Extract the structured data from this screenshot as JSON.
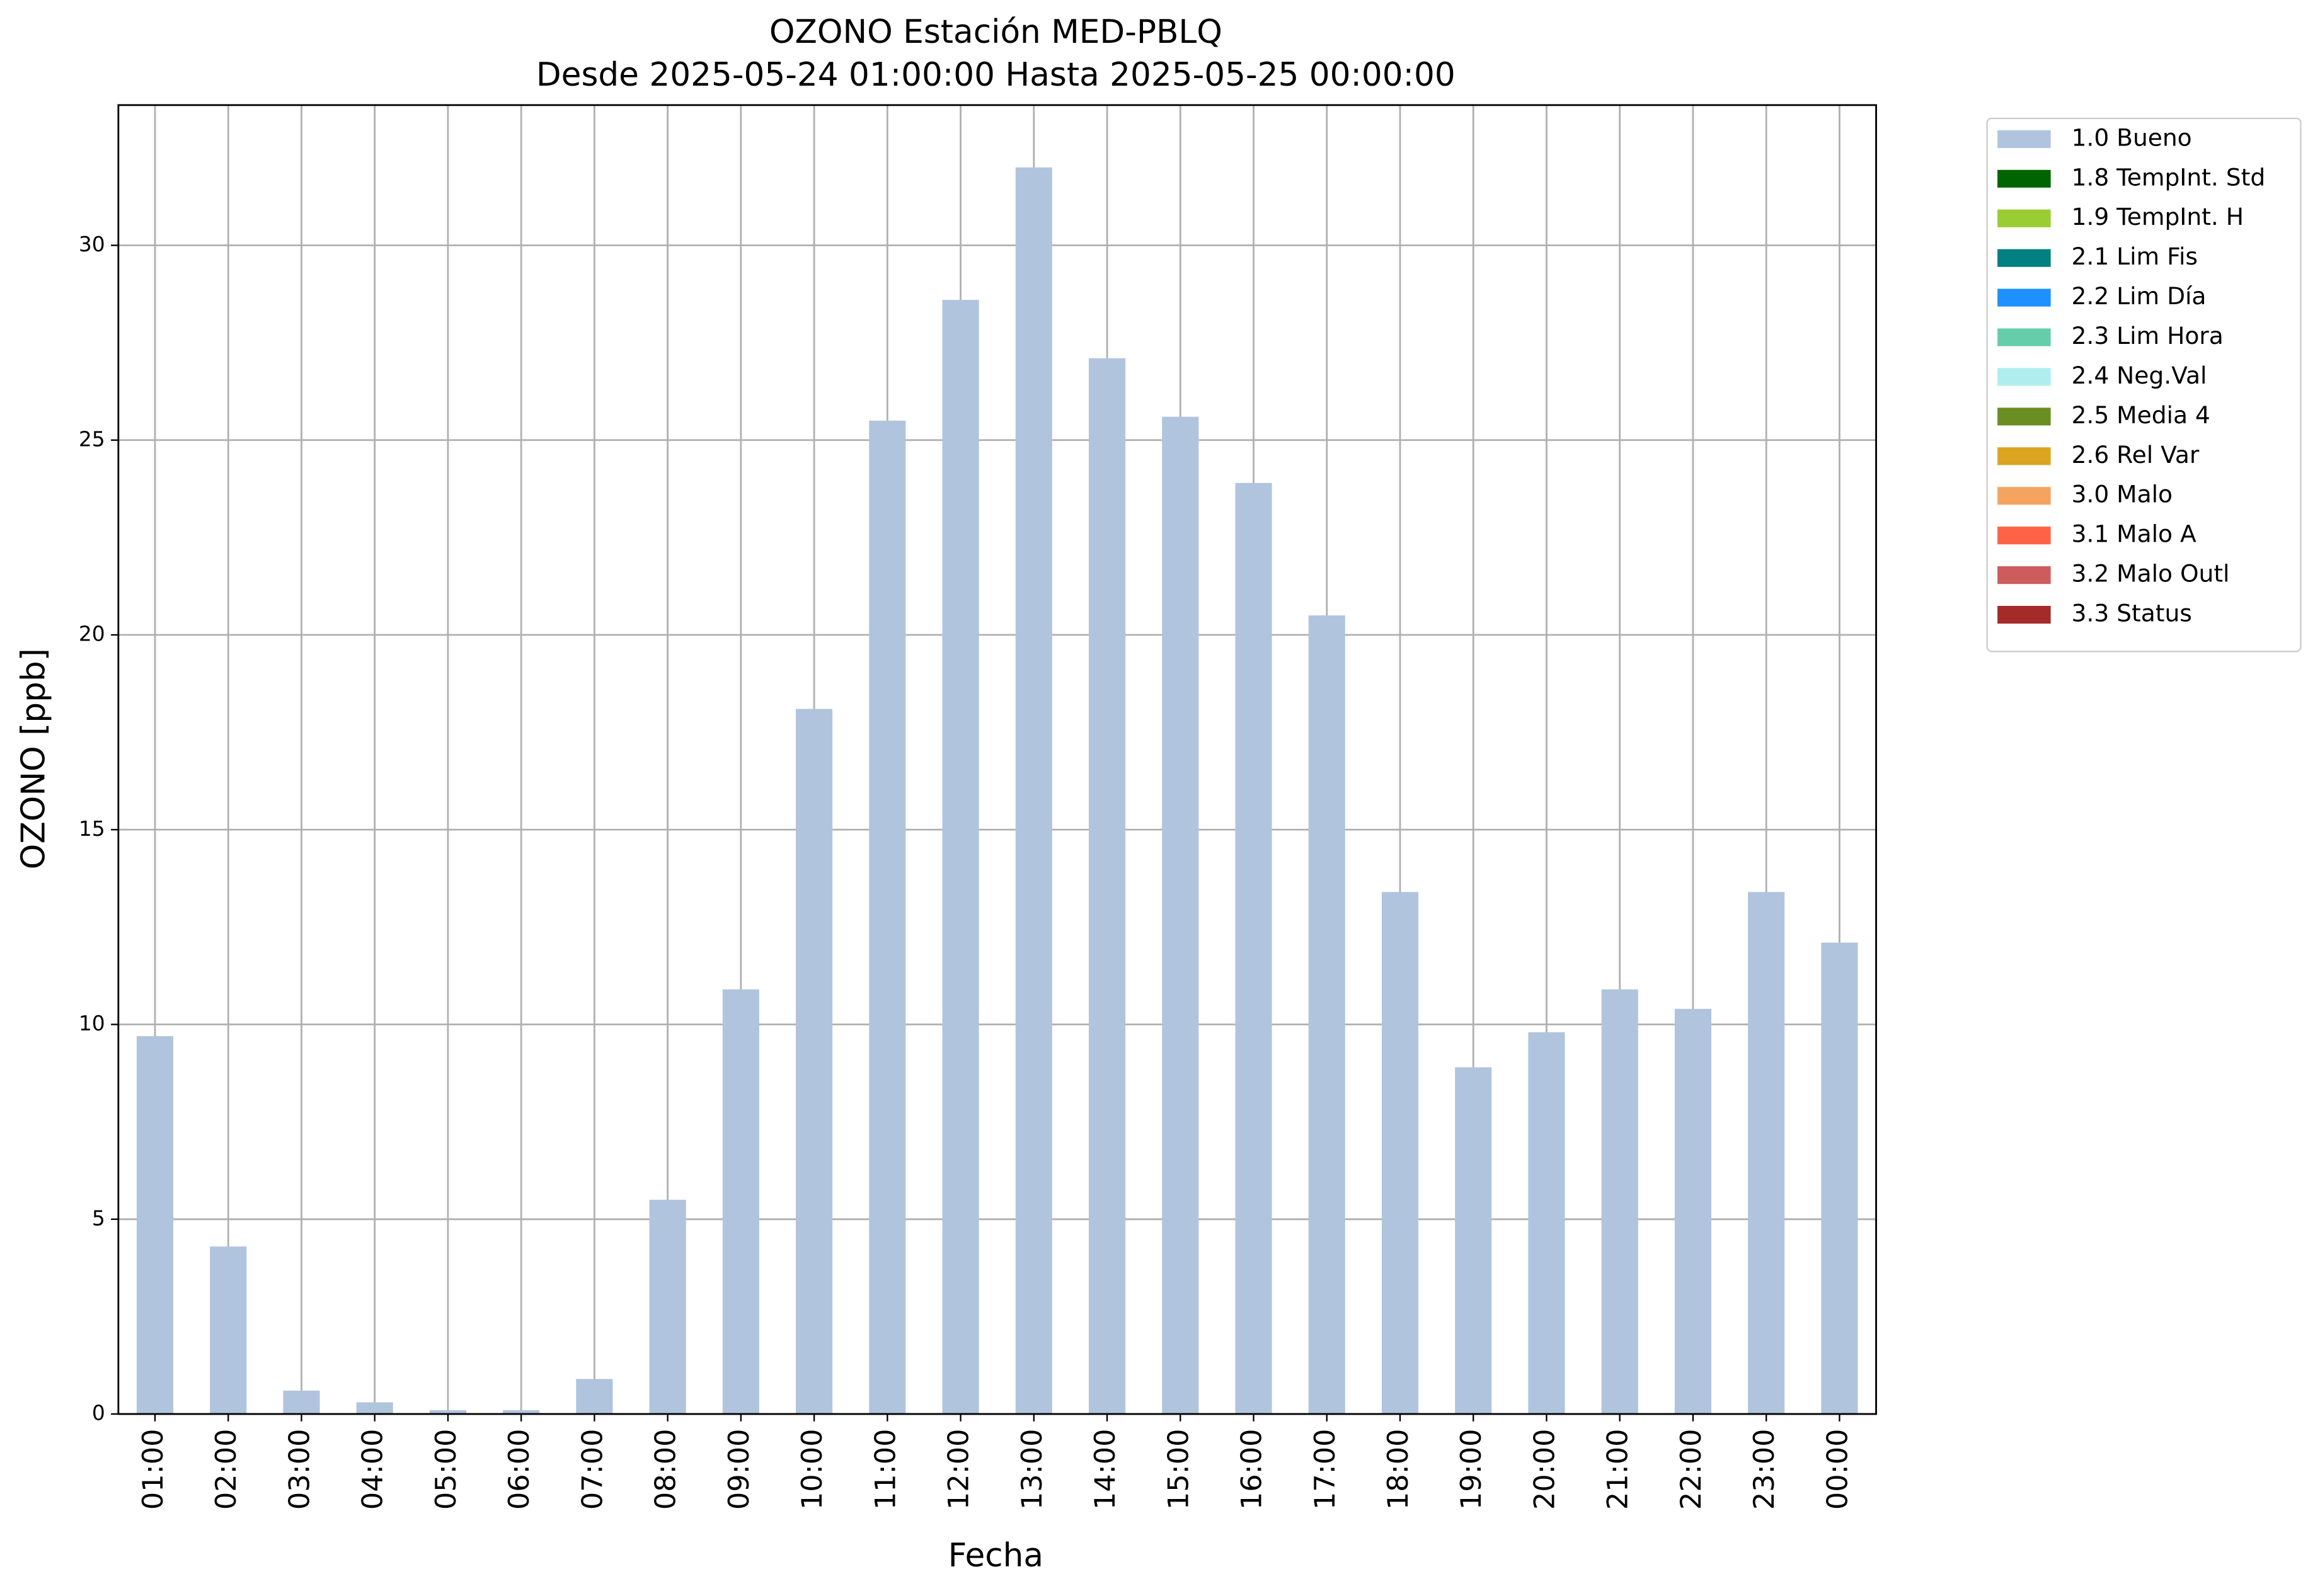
{
  "chart_data": {
    "type": "bar",
    "title": "OZONO Estación MED-PBLQ",
    "subtitle": "Desde 2025-05-24 01:00:00 Hasta 2025-05-25 00:00:00",
    "x_label": "Fecha",
    "y_label": "OZONO [ppb]",
    "categories": [
      "01:00",
      "02:00",
      "03:00",
      "04:00",
      "05:00",
      "06:00",
      "07:00",
      "08:00",
      "09:00",
      "10:00",
      "11:00",
      "12:00",
      "13:00",
      "14:00",
      "15:00",
      "16:00",
      "17:00",
      "18:00",
      "19:00",
      "20:00",
      "21:00",
      "22:00",
      "23:00",
      "00:00"
    ],
    "values": [
      9.7,
      4.3,
      0.6,
      0.3,
      0.1,
      0.1,
      0.9,
      5.5,
      10.9,
      18.1,
      25.5,
      28.6,
      32.0,
      27.1,
      25.6,
      23.9,
      20.5,
      13.4,
      8.9,
      9.8,
      10.9,
      10.4,
      13.4,
      12.1
    ],
    "color": "#b0c4de",
    "ylim": [
      0,
      33.6
    ],
    "yticks": [
      0,
      5,
      10,
      15,
      20,
      25,
      30
    ],
    "grid": true,
    "legend_position": "outside-upper-right",
    "legend": [
      {
        "name": "1.0 Bueno",
        "color": "#b0c4de"
      },
      {
        "name": "1.8 TempInt. Std",
        "color": "#006400"
      },
      {
        "name": "1.9 TempInt. H",
        "color": "#9acd32"
      },
      {
        "name": "2.1 Lim Fis",
        "color": "#008080"
      },
      {
        "name": "2.2 Lim Día",
        "color": "#1e90ff"
      },
      {
        "name": "2.3 Lim Hora",
        "color": "#66cdaa"
      },
      {
        "name": "2.4 Neg.Val",
        "color": "#afeeee"
      },
      {
        "name": "2.5 Media 4",
        "color": "#6b8e23"
      },
      {
        "name": "2.6 Rel Var",
        "color": "#daa520"
      },
      {
        "name": "3.0 Malo",
        "color": "#f4a460"
      },
      {
        "name": "3.1 Malo A",
        "color": "#ff6347"
      },
      {
        "name": "3.2 Malo Outl",
        "color": "#cd5c5c"
      },
      {
        "name": "3.3 Status",
        "color": "#a52a2a"
      }
    ]
  }
}
